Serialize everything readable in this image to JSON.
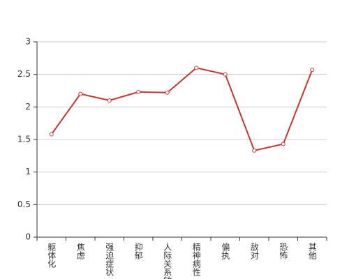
{
  "chart_data": {
    "type": "line",
    "categories": [
      "躯体化",
      "焦虑",
      "强迫症状",
      "抑郁",
      "人际关系敏感",
      "精神病性",
      "偏执",
      "敌对",
      "恐怖",
      "其他"
    ],
    "values": [
      1.58,
      2.2,
      2.1,
      2.23,
      2.22,
      2.6,
      2.5,
      1.33,
      1.43,
      2.57
    ],
    "color": "#c23531",
    "ylim": [
      0,
      3
    ],
    "yticks": [
      0,
      0.5,
      1,
      1.5,
      2,
      2.5,
      3
    ],
    "grid": true
  }
}
